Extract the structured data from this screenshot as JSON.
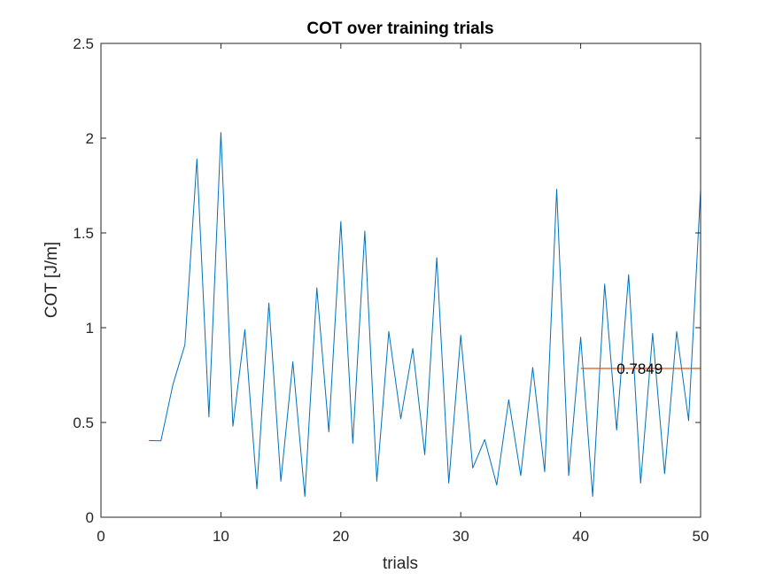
{
  "chart_data": {
    "type": "line",
    "title": "COT over training trials",
    "xlabel": "trials",
    "ylabel": "COT [J/m]",
    "xlim": [
      0,
      50
    ],
    "ylim": [
      0,
      2.5
    ],
    "xticks": [
      0,
      10,
      20,
      30,
      40,
      50
    ],
    "yticks": [
      0,
      0.5,
      1,
      1.5,
      2,
      2.5
    ],
    "xtick_labels": [
      "0",
      "10",
      "20",
      "30",
      "40",
      "50"
    ],
    "ytick_labels": [
      "0",
      "0.5",
      "1",
      "1.5",
      "2",
      "2.5"
    ],
    "grid": false,
    "legend": "none",
    "series": [
      {
        "color": "#0072BD",
        "x": [
          4,
          5,
          6,
          7,
          8,
          9,
          10,
          11,
          12,
          13,
          14,
          15,
          16,
          17,
          18,
          19,
          20,
          21,
          22,
          23,
          24,
          25,
          26,
          27,
          28,
          29,
          30,
          31,
          32,
          33,
          34,
          35,
          36,
          37,
          38,
          39,
          40,
          41,
          42,
          43,
          44,
          45,
          46,
          47,
          48,
          49,
          50
        ],
        "y": [
          0.405,
          0.403,
          0.7,
          0.91,
          1.89,
          0.53,
          2.03,
          0.48,
          0.99,
          0.15,
          1.13,
          0.19,
          0.82,
          0.11,
          1.21,
          0.45,
          1.56,
          0.39,
          1.51,
          0.19,
          0.98,
          0.52,
          0.89,
          0.33,
          1.37,
          0.18,
          0.96,
          0.26,
          0.41,
          0.17,
          0.62,
          0.22,
          0.79,
          0.24,
          1.73,
          0.22,
          0.95,
          0.11,
          1.23,
          0.46,
          1.28,
          0.18,
          0.97,
          0.23,
          0.98,
          0.51,
          1.73
        ]
      },
      {
        "color": "#D95319",
        "x": [
          40,
          50
        ],
        "y": [
          0.7849,
          0.7849
        ]
      }
    ],
    "annotations": [
      {
        "text": "0.7849",
        "x": 43,
        "y": 0.7849
      }
    ]
  }
}
